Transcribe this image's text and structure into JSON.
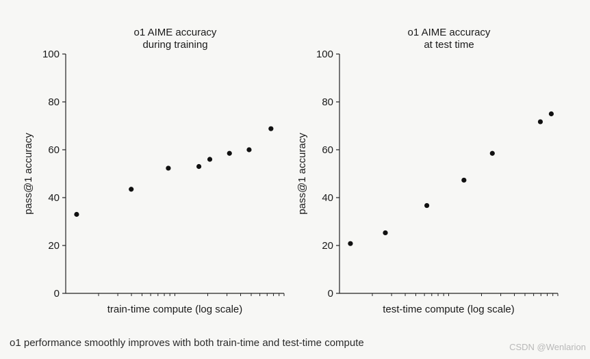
{
  "chart_data": [
    {
      "type": "scatter",
      "title": [
        "o1 AIME accuracy",
        "during training"
      ],
      "xlabel": "train-time compute (log scale)",
      "ylabel": "pass@1 accuracy",
      "xscale": "log",
      "ylim": [
        0,
        100
      ],
      "yticks": [
        0,
        20,
        40,
        60,
        80,
        100
      ],
      "grid": false,
      "series": [
        {
          "x": [
            0.05,
            0.3,
            0.47,
            0.61,
            0.66,
            0.75,
            0.84,
            0.94
          ],
          "y": [
            33,
            43.5,
            52.3,
            53,
            56,
            58.5,
            60,
            68.8
          ]
        }
      ]
    },
    {
      "type": "scatter",
      "title": [
        "o1 AIME accuracy",
        "at test time"
      ],
      "xlabel": "test-time compute (log scale)",
      "ylabel": "pass@1 accuracy",
      "xscale": "log",
      "ylim": [
        0,
        100
      ],
      "yticks": [
        0,
        20,
        40,
        60,
        80,
        100
      ],
      "grid": false,
      "series": [
        {
          "x": [
            0.05,
            0.21,
            0.4,
            0.57,
            0.7,
            0.92,
            0.97
          ],
          "y": [
            20.8,
            25.3,
            36.7,
            47.3,
            58.5,
            71.7,
            75
          ]
        }
      ]
    }
  ],
  "caption": "o1 performance smoothly improves with both train-time and test-time compute",
  "watermark": "CSDN @Wenlarion"
}
